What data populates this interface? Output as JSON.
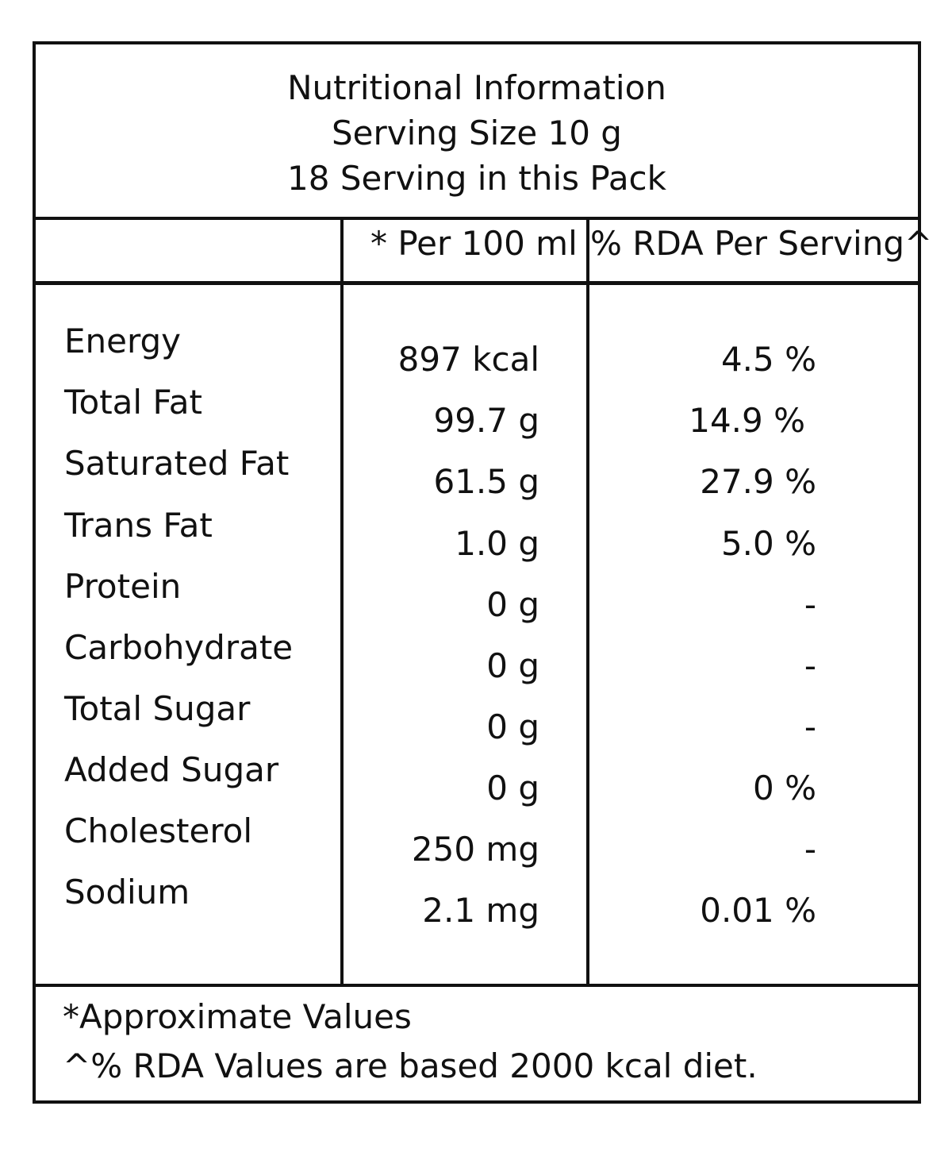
{
  "header": {
    "title": "Nutritional Information",
    "serving_size": "Serving Size 10 g",
    "servings": "18 Serving in this Pack"
  },
  "columns": {
    "per_100": "* Per 100 ml",
    "rda": "% RDA Per Serving^"
  },
  "rows": [
    {
      "nutrient": "Energy",
      "per_100": "897 kcal",
      "rda": "4.5 %"
    },
    {
      "nutrient": "Total Fat",
      "per_100": "99.7 g",
      "rda": "14.9 %"
    },
    {
      "nutrient": "Saturated Fat",
      "per_100": "61.5 g",
      "rda": "27.9 %"
    },
    {
      "nutrient": "Trans Fat",
      "per_100": "1.0 g",
      "rda": "5.0 %"
    },
    {
      "nutrient": "Protein",
      "per_100": "0 g",
      "rda": "-"
    },
    {
      "nutrient": "Carbohydrate",
      "per_100": "0 g",
      "rda": "-"
    },
    {
      "nutrient": "Total Sugar",
      "per_100": "0 g",
      "rda": "-"
    },
    {
      "nutrient": "Added Sugar",
      "per_100": "0 g",
      "rda": "0 %"
    },
    {
      "nutrient": "Cholesterol",
      "per_100": "250 mg",
      "rda": "-"
    },
    {
      "nutrient": "Sodium",
      "per_100": "2.1 mg",
      "rda": "0.01 %"
    }
  ],
  "footer": {
    "note1": "*Approximate Values",
    "note2": "^% RDA Values are based 2000 kcal diet."
  }
}
